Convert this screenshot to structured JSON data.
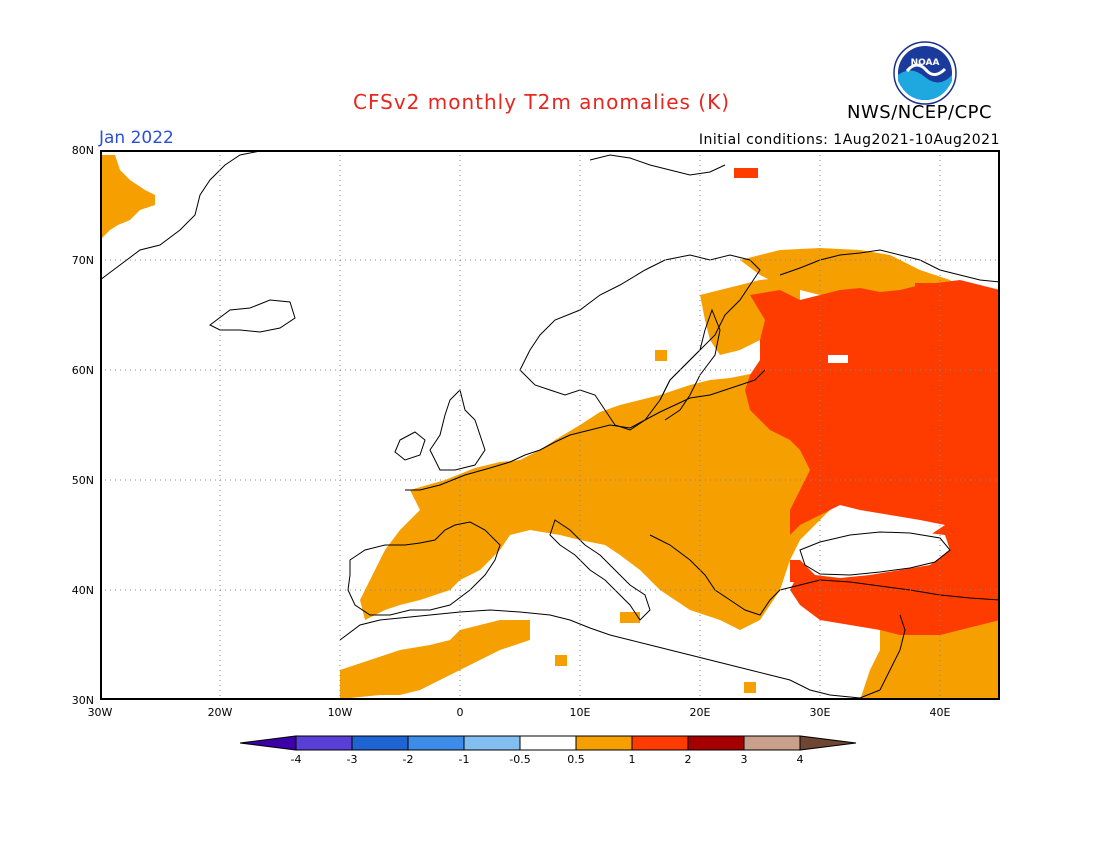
{
  "title": "CFSv2 monthly T2m anomalies (K)",
  "agency": "NWS/NCEP/CPC",
  "logo_text": "NOAA",
  "month_label": "Jan 2022",
  "initial_conditions": "Initial conditions: 1Aug2021-10Aug2021",
  "lat_labels": [
    "80N",
    "70N",
    "60N",
    "50N",
    "40N",
    "30N"
  ],
  "lon_labels": [
    "30W",
    "20W",
    "10W",
    "0",
    "10E",
    "20E",
    "30E",
    "40E"
  ],
  "colorbar": {
    "ticks": [
      "-4",
      "-3",
      "-2",
      "-1",
      "-0.5",
      "0.5",
      "1",
      "2",
      "3",
      "4"
    ],
    "colors": [
      "#3d00a8",
      "#5a3fd6",
      "#1e64d2",
      "#3c8ce8",
      "#82bef0",
      "#ffffff",
      "#f5a000",
      "#ff3c00",
      "#a50000",
      "#c8a08c",
      "#6e4632"
    ]
  },
  "legend_colors": {
    "anomaly_0_5_to_1": "#f5a000",
    "anomaly_1_to_2": "#ff3c00",
    "neutral": "#ffffff",
    "coastline": "#000000",
    "grid": "#888888"
  }
}
